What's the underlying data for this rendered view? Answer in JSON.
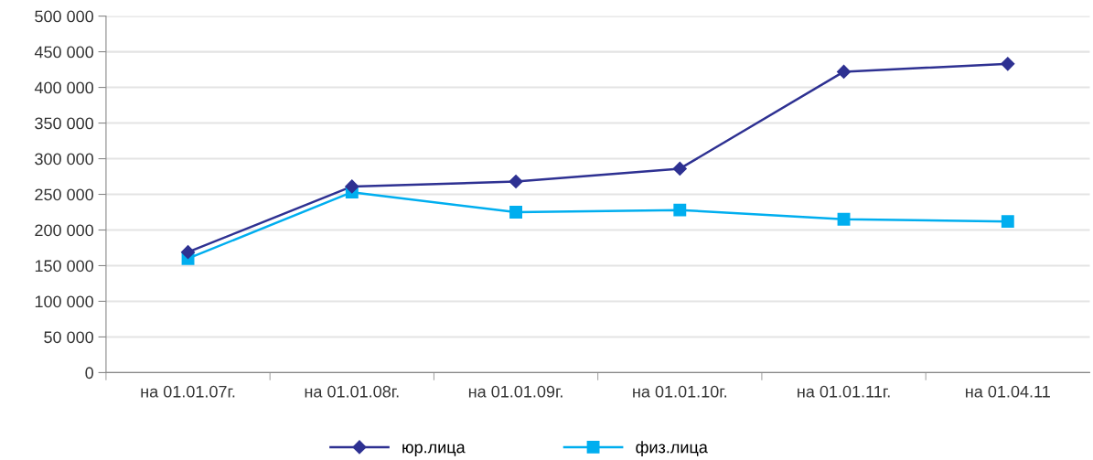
{
  "chart_data": {
    "type": "line",
    "categories": [
      "на 01.01.07г.",
      "на 01.01.08г.",
      "на 01.01.09г.",
      "на 01.01.10г.",
      "на 01.01.11г.",
      "на 01.04.11"
    ],
    "series": [
      {
        "name": "юр.лица",
        "color": "#2e3192",
        "marker": "diamond",
        "values": [
          169000,
          261000,
          268000,
          286000,
          422000,
          433000
        ]
      },
      {
        "name": "физ.лица",
        "color": "#00aeef",
        "marker": "square",
        "values": [
          160000,
          253000,
          225000,
          228000,
          215000,
          212000
        ]
      }
    ],
    "ylim": [
      0,
      500000
    ],
    "yticks": [
      {
        "value": 0,
        "label": "0"
      },
      {
        "value": 50000,
        "label": "50 000"
      },
      {
        "value": 100000,
        "label": "100 000"
      },
      {
        "value": 150000,
        "label": "150 000"
      },
      {
        "value": 200000,
        "label": "200 000"
      },
      {
        "value": 250000,
        "label": "250 000"
      },
      {
        "value": 300000,
        "label": "300 000"
      },
      {
        "value": 350000,
        "label": "350 000"
      },
      {
        "value": 400000,
        "label": "400 000"
      },
      {
        "value": 450000,
        "label": "450 000"
      },
      {
        "value": 500000,
        "label": "500 000"
      }
    ],
    "grid": "y",
    "legend": "bottom",
    "line_style": "solid"
  }
}
